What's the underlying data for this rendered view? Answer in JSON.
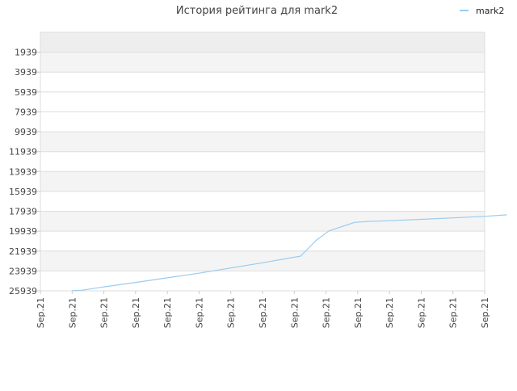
{
  "chart_data": {
    "type": "line",
    "title": "История рейтинга для mark2",
    "xlabel": "",
    "ylabel": "",
    "y_inverted": true,
    "ylim": [
      25939,
      -61
    ],
    "y_ticks": [
      1939,
      3939,
      5939,
      7939,
      9939,
      11939,
      13939,
      15939,
      17939,
      19939,
      21939,
      23939,
      25939
    ],
    "y_tick_labels": [
      "1939",
      "3939",
      "5939",
      "7939",
      "9939",
      "11939",
      "13939",
      "15939",
      "17939",
      "19939",
      "21939",
      "23939",
      "25939"
    ],
    "x_tick_labels": [
      "Sep.21",
      "Sep.21",
      "Sep.21",
      "Sep.21",
      "Sep.21",
      "Sep.21",
      "Sep.21",
      "Sep.21",
      "Sep.21",
      "Sep.21",
      "Sep.21",
      "Sep.21",
      "Sep.21",
      "Sep.21",
      "Sep.21"
    ],
    "grid": true,
    "legend": {
      "position": "top-right",
      "entries": [
        "mark2"
      ]
    },
    "series": [
      {
        "name": "mark2",
        "color": "#99ccee",
        "x_index": [
          1,
          1.3,
          2,
          3,
          4,
          5,
          6,
          7,
          8,
          8.2,
          8.7,
          9.1,
          9.9,
          10.3,
          11,
          12,
          13,
          14,
          14.7
        ],
        "values": [
          25930,
          25880,
          25540,
          25090,
          24630,
          24170,
          23640,
          23120,
          22560,
          22450,
          20830,
          19900,
          19060,
          18970,
          18890,
          18750,
          18600,
          18450,
          18290
        ]
      }
    ]
  }
}
